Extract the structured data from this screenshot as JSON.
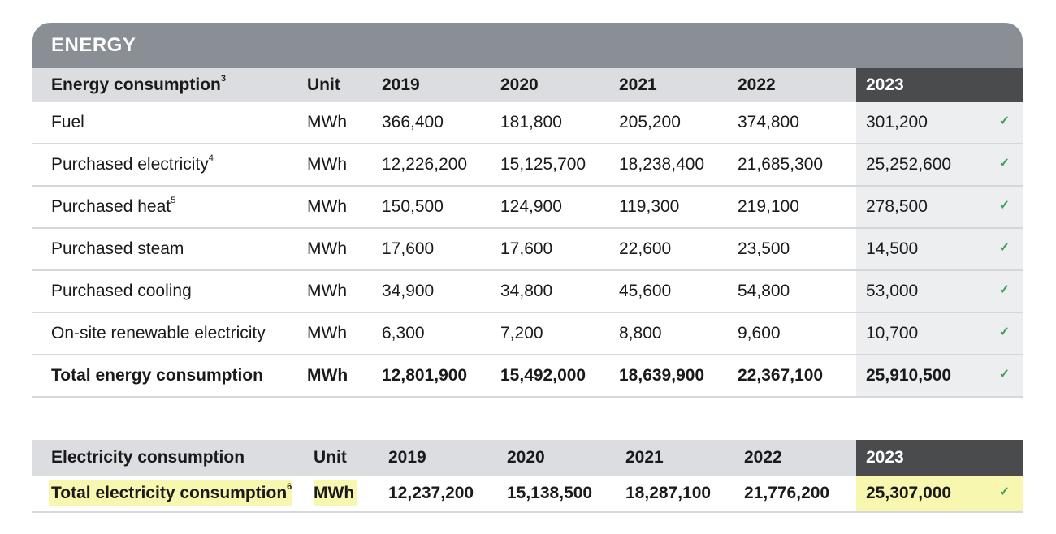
{
  "energy": {
    "banner": "ENERGY",
    "columns": [
      "Energy consumption",
      "Unit",
      "2019",
      "2020",
      "2021",
      "2022",
      "2023"
    ],
    "header_sup": "3",
    "rows": [
      {
        "label": "Fuel",
        "sup": "",
        "unit": "MWh",
        "v2019": "366,400",
        "v2020": "181,800",
        "v2021": "205,200",
        "v2022": "374,800",
        "v2023": "301,200",
        "check": "✓"
      },
      {
        "label": "Purchased electricity",
        "sup": "4",
        "unit": "MWh",
        "v2019": "12,226,200",
        "v2020": "15,125,700",
        "v2021": "18,238,400",
        "v2022": "21,685,300",
        "v2023": "25,252,600",
        "check": "✓"
      },
      {
        "label": "Purchased heat",
        "sup": "5",
        "unit": "MWh",
        "v2019": "150,500",
        "v2020": "124,900",
        "v2021": "119,300",
        "v2022": "219,100",
        "v2023": "278,500",
        "check": "✓"
      },
      {
        "label": "Purchased steam",
        "sup": "",
        "unit": "MWh",
        "v2019": "17,600",
        "v2020": "17,600",
        "v2021": "22,600",
        "v2022": "23,500",
        "v2023": "14,500",
        "check": "✓"
      },
      {
        "label": "Purchased cooling",
        "sup": "",
        "unit": "MWh",
        "v2019": "34,900",
        "v2020": "34,800",
        "v2021": "45,600",
        "v2022": "54,800",
        "v2023": "53,000",
        "check": "✓"
      },
      {
        "label": "On-site renewable electricity",
        "sup": "",
        "unit": "MWh",
        "v2019": "6,300",
        "v2020": "7,200",
        "v2021": "8,800",
        "v2022": "9,600",
        "v2023": "10,700",
        "check": "✓"
      },
      {
        "label": "Total energy consumption",
        "sup": "",
        "unit": "MWh",
        "v2019": "12,801,900",
        "v2020": "15,492,000",
        "v2021": "18,639,900",
        "v2022": "22,367,100",
        "v2023": "25,910,500",
        "check": "✓"
      }
    ]
  },
  "electricity": {
    "columns": [
      "Electricity consumption",
      "Unit",
      "2019",
      "2020",
      "2021",
      "2022",
      "2023"
    ],
    "row": {
      "label": "Total electricity consumption",
      "sup": "6",
      "unit": "MWh",
      "v2019": "12,237,200",
      "v2020": "15,138,500",
      "v2021": "18,287,100",
      "v2022": "21,776,200",
      "v2023": "25,307,000",
      "check": "✓"
    }
  },
  "colors": {
    "banner": "#8a8f95",
    "header": "#dcdde0",
    "highlight_header": "#4a4b4d",
    "highlight_cell": "#eceef0",
    "check": "#3aa055",
    "yellow_highlight": "#f7f7b0"
  }
}
